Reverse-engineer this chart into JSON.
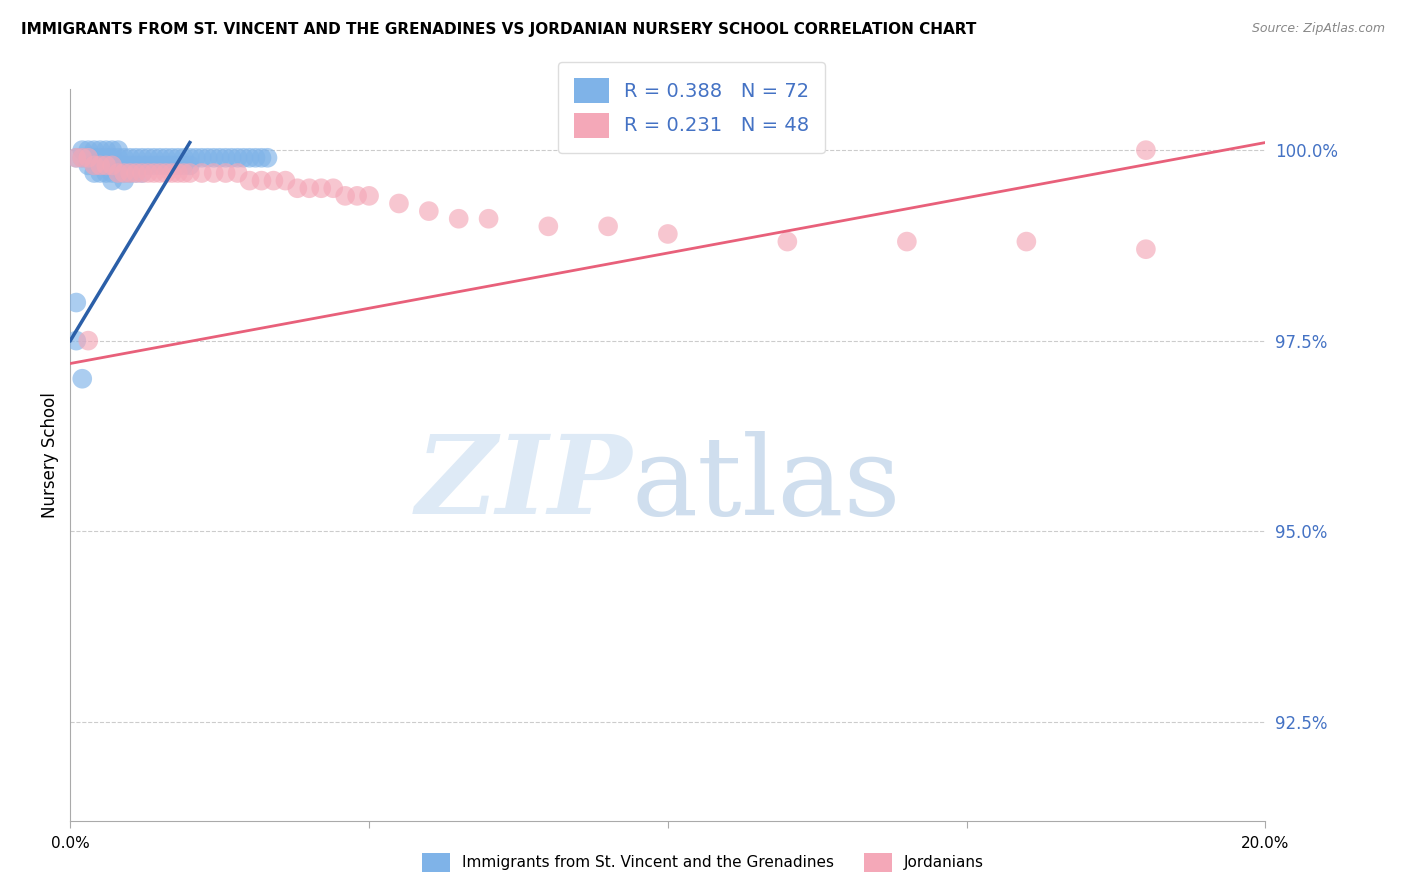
{
  "title": "IMMIGRANTS FROM ST. VINCENT AND THE GRENADINES VS JORDANIAN NURSERY SCHOOL CORRELATION CHART",
  "source": "Source: ZipAtlas.com",
  "ylabel": "Nursery School",
  "yticks": [
    "92.5%",
    "95.0%",
    "97.5%",
    "100.0%"
  ],
  "ytick_vals": [
    0.925,
    0.95,
    0.975,
    1.0
  ],
  "xlim": [
    0.0,
    0.2
  ],
  "ylim": [
    0.912,
    1.008
  ],
  "legend1_label": "Immigrants from St. Vincent and the Grenadines",
  "legend2_label": "Jordanians",
  "R1": 0.388,
  "N1": 72,
  "R2": 0.231,
  "N2": 48,
  "color_blue": "#7FB3E8",
  "color_pink": "#F4A8B8",
  "trendline_blue": "#2B5FA8",
  "trendline_pink": "#E8607A",
  "blue_x": [
    0.001,
    0.002,
    0.002,
    0.003,
    0.003,
    0.003,
    0.004,
    0.004,
    0.004,
    0.004,
    0.005,
    0.005,
    0.005,
    0.005,
    0.006,
    0.006,
    0.006,
    0.006,
    0.007,
    0.007,
    0.007,
    0.007,
    0.007,
    0.008,
    0.008,
    0.008,
    0.008,
    0.009,
    0.009,
    0.009,
    0.009,
    0.01,
    0.01,
    0.01,
    0.011,
    0.011,
    0.011,
    0.012,
    0.012,
    0.012,
    0.013,
    0.013,
    0.014,
    0.014,
    0.015,
    0.015,
    0.016,
    0.016,
    0.017,
    0.017,
    0.018,
    0.018,
    0.019,
    0.019,
    0.02,
    0.02,
    0.021,
    0.022,
    0.023,
    0.024,
    0.025,
    0.026,
    0.027,
    0.028,
    0.029,
    0.03,
    0.031,
    0.032,
    0.033,
    0.001,
    0.001,
    0.002
  ],
  "blue_y": [
    0.999,
    1.0,
    0.999,
    1.0,
    0.999,
    0.998,
    1.0,
    0.999,
    0.998,
    0.997,
    1.0,
    0.999,
    0.998,
    0.997,
    1.0,
    0.999,
    0.998,
    0.997,
    1.0,
    0.999,
    0.998,
    0.997,
    0.996,
    1.0,
    0.999,
    0.998,
    0.997,
    0.999,
    0.998,
    0.997,
    0.996,
    0.999,
    0.998,
    0.997,
    0.999,
    0.998,
    0.997,
    0.999,
    0.998,
    0.997,
    0.999,
    0.998,
    0.999,
    0.998,
    0.999,
    0.998,
    0.999,
    0.998,
    0.999,
    0.998,
    0.999,
    0.998,
    0.999,
    0.998,
    0.999,
    0.998,
    0.999,
    0.999,
    0.999,
    0.999,
    0.999,
    0.999,
    0.999,
    0.999,
    0.999,
    0.999,
    0.999,
    0.999,
    0.999,
    0.98,
    0.975,
    0.97
  ],
  "pink_x": [
    0.001,
    0.002,
    0.003,
    0.004,
    0.005,
    0.006,
    0.007,
    0.008,
    0.009,
    0.01,
    0.011,
    0.012,
    0.013,
    0.014,
    0.015,
    0.016,
    0.017,
    0.018,
    0.019,
    0.02,
    0.022,
    0.024,
    0.026,
    0.028,
    0.03,
    0.032,
    0.034,
    0.036,
    0.038,
    0.04,
    0.042,
    0.044,
    0.046,
    0.048,
    0.05,
    0.055,
    0.06,
    0.065,
    0.07,
    0.08,
    0.09,
    0.1,
    0.12,
    0.14,
    0.16,
    0.18,
    0.003,
    0.18
  ],
  "pink_y": [
    0.999,
    0.999,
    0.999,
    0.998,
    0.998,
    0.998,
    0.998,
    0.997,
    0.997,
    0.997,
    0.997,
    0.997,
    0.997,
    0.997,
    0.997,
    0.997,
    0.997,
    0.997,
    0.997,
    0.997,
    0.997,
    0.997,
    0.997,
    0.997,
    0.996,
    0.996,
    0.996,
    0.996,
    0.995,
    0.995,
    0.995,
    0.995,
    0.994,
    0.994,
    0.994,
    0.993,
    0.992,
    0.991,
    0.991,
    0.99,
    0.99,
    0.989,
    0.988,
    0.988,
    0.988,
    0.987,
    0.975,
    1.0
  ]
}
